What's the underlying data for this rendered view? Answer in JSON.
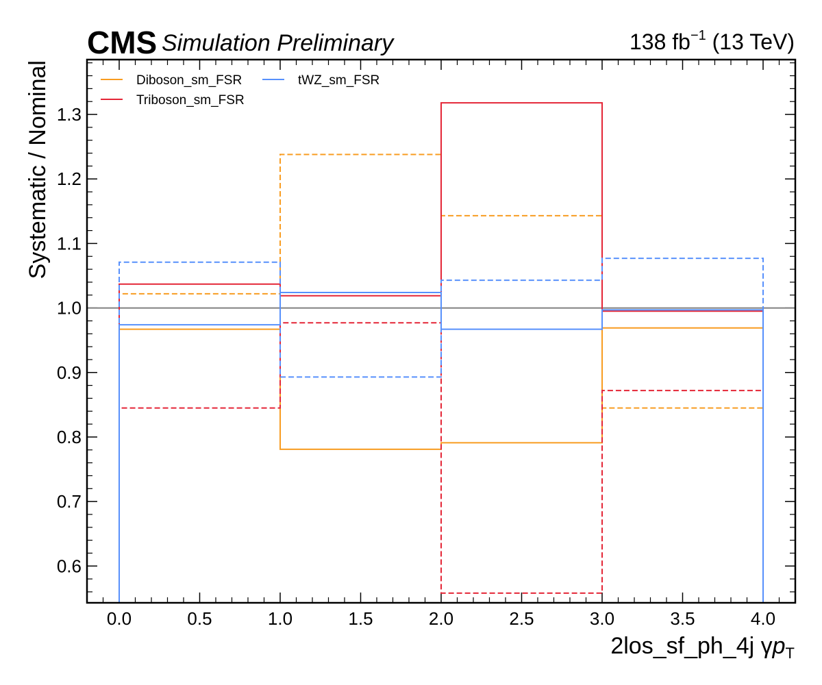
{
  "header": {
    "cms": "CMS",
    "status": "Simulation Preliminary",
    "lumi": "138 fb",
    "lumi_exp": "−1",
    "energy": " (13 TeV)"
  },
  "chart_data": {
    "type": "step",
    "ylabel": "Systematic / Nominal",
    "xlabel_main": "2los_sf_ph_4j   γ",
    "xlabel_var": "p",
    "xlabel_sub": "T",
    "xlim": [
      -0.2,
      4.2
    ],
    "ylim": [
      0.543,
      1.385
    ],
    "xticks": [
      0.0,
      0.5,
      1.0,
      1.5,
      2.0,
      2.5,
      3.0,
      3.5,
      4.0
    ],
    "xtick_labels": [
      "0.0",
      "0.5",
      "1.0",
      "1.5",
      "2.0",
      "2.5",
      "3.0",
      "3.5",
      "4.0"
    ],
    "yticks": [
      0.6,
      0.7,
      0.8,
      0.9,
      1.0,
      1.1,
      1.2,
      1.3
    ],
    "ytick_labels": [
      "0.6",
      "0.7",
      "0.8",
      "0.9",
      "1.0",
      "1.1",
      "1.2",
      "1.3"
    ],
    "reference_line": 1.0,
    "bin_edges": [
      0,
      1,
      2,
      3,
      4
    ],
    "legend_position": "top-left",
    "series": [
      {
        "name": "Diboson_sm_FSR",
        "color": "#f89c20",
        "style": "solid",
        "values": [
          0.967,
          0.781,
          0.791,
          0.969
        ]
      },
      {
        "name": "",
        "color": "#f89c20",
        "style": "dashed",
        "values": [
          1.022,
          1.238,
          1.143,
          0.845
        ]
      },
      {
        "name": "Triboson_sm_FSR",
        "color": "#e42536",
        "style": "solid",
        "values": [
          1.037,
          1.019,
          1.318,
          0.995
        ]
      },
      {
        "name": "",
        "color": "#e42536",
        "style": "dashed",
        "values": [
          0.845,
          0.977,
          0.558,
          0.872
        ]
      },
      {
        "name": "tWZ_sm_FSR",
        "color": "#5790fc",
        "style": "solid",
        "values": [
          0.974,
          1.024,
          0.967,
          0.997
        ]
      },
      {
        "name": "",
        "color": "#5790fc",
        "style": "dashed",
        "values": [
          1.071,
          0.893,
          1.043,
          1.077
        ]
      }
    ]
  }
}
